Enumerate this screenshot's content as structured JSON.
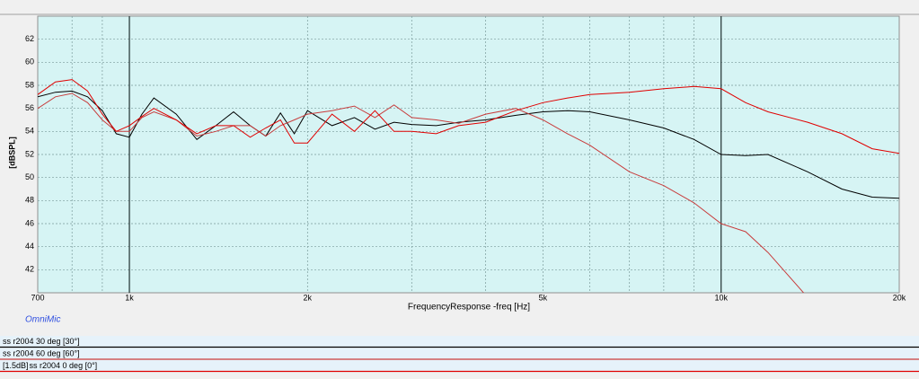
{
  "chart_data": {
    "type": "line",
    "ylabel": "[dBSPL]",
    "xlabel": "FrequencyResponse -freq [Hz]",
    "watermark": "OmniMic",
    "xscale": "log",
    "xlim": [
      700,
      20000
    ],
    "ylim": [
      40,
      64
    ],
    "xticks": [
      700,
      {
        "value": 1000,
        "label": "1k"
      },
      {
        "value": 2000,
        "label": "2k"
      },
      {
        "value": 5000,
        "label": "5k"
      },
      {
        "value": 10000,
        "label": "10k"
      },
      {
        "value": 20000,
        "label": "20k"
      }
    ],
    "xgrid": [
      800,
      900,
      3000,
      4000,
      6000,
      7000,
      8000,
      9000
    ],
    "yticks": [
      42,
      44,
      46,
      48,
      50,
      52,
      54,
      56,
      58,
      60,
      62
    ],
    "grid": true,
    "x": [
      700,
      750,
      800,
      850,
      900,
      950,
      1000,
      1050,
      1100,
      1200,
      1300,
      1400,
      1500,
      1600,
      1700,
      1800,
      1900,
      2000,
      2200,
      2400,
      2600,
      2800,
      3000,
      3300,
      3600,
      4000,
      4500,
      5000,
      5500,
      6000,
      7000,
      8000,
      9000,
      10000,
      11000,
      12000,
      14000,
      16000,
      18000,
      20000
    ],
    "series": [
      {
        "name": "ss r2004 30 deg [30°]",
        "color": "#000000",
        "values": [
          57.0,
          57.4,
          57.5,
          57.0,
          55.8,
          53.8,
          53.5,
          55.5,
          56.9,
          55.5,
          53.3,
          54.5,
          55.7,
          54.5,
          53.6,
          55.6,
          53.8,
          55.8,
          54.5,
          55.2,
          54.2,
          54.8,
          54.6,
          54.5,
          54.8,
          55.0,
          55.4,
          55.7,
          55.8,
          55.7,
          55.0,
          54.3,
          53.3,
          52.0,
          51.9,
          52.0,
          50.5,
          49.0,
          48.3,
          48.2
        ]
      },
      {
        "name": "ss r2004 60 deg [60°]",
        "color": "#c83c3c",
        "values": [
          56.0,
          57.0,
          57.3,
          56.5,
          55.0,
          54.0,
          54.0,
          55.2,
          55.7,
          55.0,
          53.6,
          54.0,
          54.5,
          54.5,
          53.6,
          54.5,
          55.0,
          55.5,
          55.8,
          56.2,
          55.2,
          56.3,
          55.2,
          55.0,
          54.7,
          55.5,
          56.0,
          55.0,
          53.8,
          52.8,
          50.5,
          49.3,
          47.8,
          46.0,
          45.3,
          43.5,
          39.6,
          null,
          null,
          null
        ]
      },
      {
        "name": "ss r2004 0 deg [0°]",
        "offset_label": "[1.5dB]",
        "color": "#e00000",
        "values": [
          57.2,
          58.3,
          58.5,
          57.5,
          55.5,
          54.0,
          54.5,
          55.3,
          56.0,
          55.0,
          53.8,
          54.5,
          54.5,
          53.5,
          54.3,
          55.0,
          53.0,
          53.0,
          55.5,
          54.0,
          55.8,
          54.0,
          54.0,
          53.8,
          54.5,
          54.8,
          55.8,
          56.5,
          56.9,
          57.2,
          57.4,
          57.7,
          57.9,
          57.7,
          56.5,
          55.7,
          54.8,
          53.8,
          52.5,
          52.1
        ]
      }
    ]
  }
}
